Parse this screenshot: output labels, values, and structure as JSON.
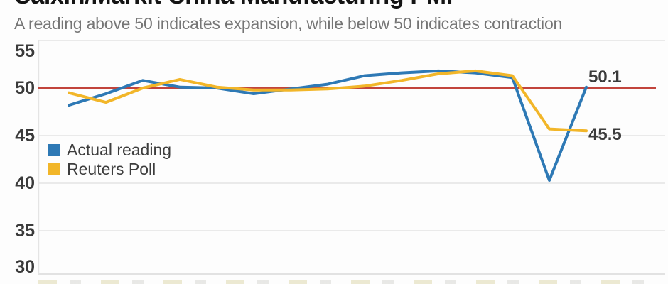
{
  "header": {
    "title": "Caixin/Markit China Manufacturing PMI",
    "subtitle": "A reading above 50 indicates expansion, while below 50 indicates contraction"
  },
  "legend": {
    "items": [
      {
        "label": "Actual reading",
        "color": "#2e79b5"
      },
      {
        "label": "Reuters Poll",
        "color": "#f2b629"
      }
    ]
  },
  "chart_data": {
    "type": "line",
    "title": "Caixin/Markit China Manufacturing PMI",
    "subtitle": "A reading above 50 indicates expansion, while below 50 indicates contraction",
    "x_labels_visible": false,
    "num_points": 15,
    "y_axis": {
      "ticks": [
        55,
        50,
        45,
        40,
        35,
        30
      ],
      "range": [
        29,
        56
      ]
    },
    "grid": true,
    "legend_position": "inside-left",
    "reference_line": {
      "value": 50,
      "color": "#c2443c"
    },
    "series": [
      {
        "name": "Actual reading",
        "color": "#2e79b5",
        "values": [
          48.2,
          49.4,
          50.8,
          50.1,
          50.0,
          49.4,
          49.9,
          50.4,
          51.3,
          51.6,
          51.8,
          51.6,
          51.1,
          40.3,
          50.1
        ]
      },
      {
        "name": "Reuters Poll",
        "color": "#f2b629",
        "values": [
          49.5,
          48.5,
          50.0,
          50.9,
          50.1,
          49.8,
          49.8,
          49.9,
          50.2,
          50.8,
          51.5,
          51.8,
          51.3,
          45.7,
          45.5
        ]
      }
    ],
    "end_labels": [
      {
        "text": "50.1",
        "series": "Actual reading"
      },
      {
        "text": "45.5",
        "series": "Reuters Poll"
      }
    ],
    "colors": {
      "grid": "#e4e4e4",
      "axis": "#d9d9d9",
      "tick_text": "#3b3b3b",
      "subtitle_text": "#757575"
    }
  }
}
